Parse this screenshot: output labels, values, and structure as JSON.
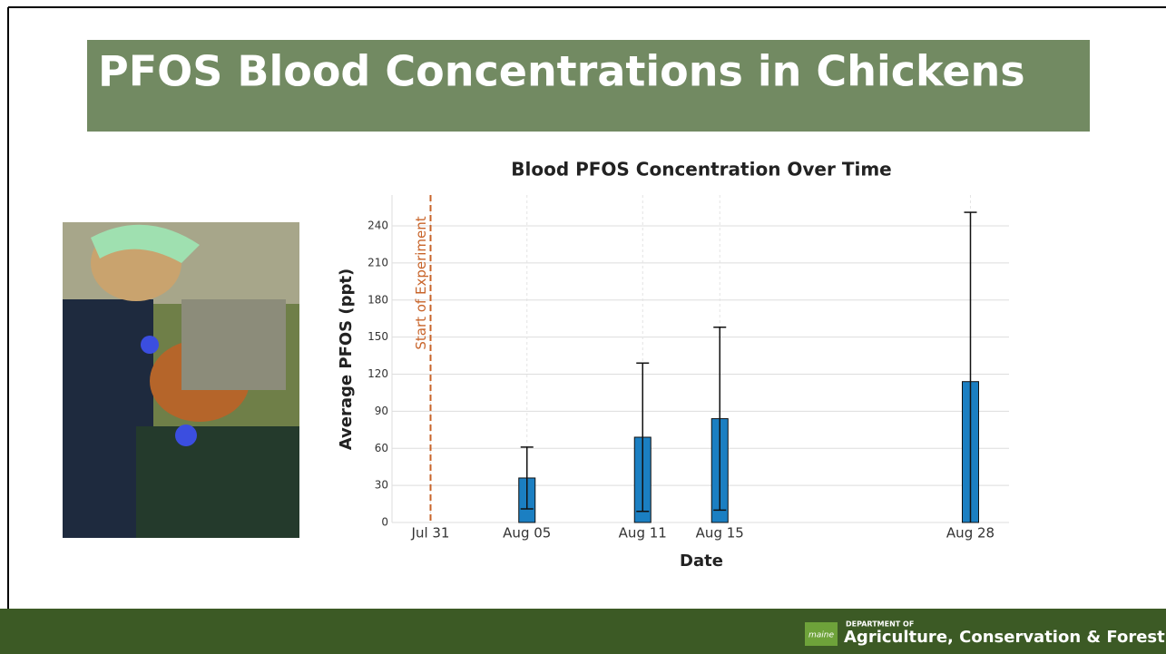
{
  "slide_title": "PFOS Blood Concentrations in Chickens",
  "chart_data": {
    "type": "bar",
    "title": "Blood PFOS Concentration Over Time",
    "x_label": "Date",
    "y_label": "Average PFOS (ppt)",
    "x": [
      "Aug 05",
      "Aug 11",
      "Aug 15",
      "Aug 28"
    ],
    "values": [
      36,
      69,
      84,
      114
    ],
    "errors": [
      25,
      60,
      74,
      137
    ],
    "color": "#1b7fc2",
    "xlim": [
      "Jul 29",
      "Aug 30"
    ],
    "xticks": [
      "Jul 31",
      "Aug 05",
      "Aug 11",
      "Aug 15",
      "Aug 28"
    ],
    "ylim": [
      0,
      265
    ],
    "yticks": [
      0,
      30,
      60,
      90,
      120,
      150,
      180,
      210,
      240
    ],
    "grid": true,
    "vline": {
      "x": "Jul 31",
      "label": "Start of Experiment",
      "color": "#c8642a"
    }
  },
  "footer": {
    "logo": "maine",
    "department": "DEPARTMENT OF",
    "name": "Agriculture, Conservation & Forestry"
  }
}
